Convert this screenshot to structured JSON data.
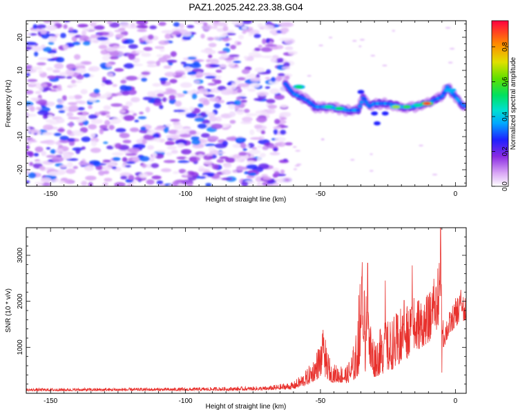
{
  "colors": {
    "snr_line": "#e8302c",
    "axis": "#000000"
  },
  "chart_data": [
    {
      "type": "heatmap",
      "title": "PAZ1.2025.242.23.38.G04",
      "xlabel": "Height of straight line (km)",
      "ylabel": "Frequency (Hz)",
      "xlim": [
        -159,
        4
      ],
      "ylim": [
        -25,
        25
      ],
      "xticks": [
        -150,
        -100,
        -50,
        0
      ],
      "yticks": [
        -20,
        -10,
        0,
        10,
        20
      ],
      "colorbar": {
        "label": "Normalized spectral amplitude",
        "range": [
          0,
          0.95
        ],
        "ticks": [
          0.0,
          0.2,
          0.4,
          0.6,
          0.8
        ],
        "tick_labels": [
          "0.0",
          "0.2",
          "0.4",
          "0.6",
          "0.8"
        ]
      },
      "noise_region": {
        "x_range": [
          -159,
          -61
        ],
        "amplitude_range": [
          0.02,
          0.35
        ]
      },
      "signal_ridge": [
        {
          "x": -63,
          "freq": 6
        },
        {
          "x": -60,
          "freq": 3
        },
        {
          "x": -55,
          "freq": 1
        },
        {
          "x": -52,
          "freq": -1
        },
        {
          "x": -48,
          "freq": -1
        },
        {
          "x": -44,
          "freq": -1.5
        },
        {
          "x": -40,
          "freq": -2
        },
        {
          "x": -36,
          "freq": -2
        },
        {
          "x": -34,
          "freq": 2
        },
        {
          "x": -32,
          "freq": -1
        },
        {
          "x": -30,
          "freq": 0
        },
        {
          "x": -25,
          "freq": 0
        },
        {
          "x": -20,
          "freq": -1
        },
        {
          "x": -15,
          "freq": -1
        },
        {
          "x": -12,
          "freq": 0
        },
        {
          "x": -10,
          "freq": 0
        },
        {
          "x": -8,
          "freq": 1
        },
        {
          "x": -5,
          "freq": 2
        },
        {
          "x": -3,
          "freq": 5
        },
        {
          "x": -1,
          "freq": 3
        },
        {
          "x": 2,
          "freq": 0
        },
        {
          "x": 4,
          "freq": -1
        }
      ],
      "signal_peaks": [
        {
          "x": -58,
          "freq": 5,
          "amp": 0.55
        },
        {
          "x": -47,
          "freq": -1,
          "amp": 0.5
        },
        {
          "x": -43,
          "freq": -1.5,
          "amp": 0.55
        },
        {
          "x": -22,
          "freq": -1,
          "amp": 0.7
        },
        {
          "x": -18,
          "freq": -1,
          "amp": 0.6
        },
        {
          "x": -14,
          "freq": -0.5,
          "amp": 0.5
        },
        {
          "x": -10.5,
          "freq": 0,
          "amp": 0.95
        },
        {
          "x": -2,
          "freq": 4,
          "amp": 0.4
        }
      ]
    },
    {
      "type": "line",
      "title": "",
      "xlabel": "Height of straight line (km)",
      "ylabel": "SNR (10 * v/v)",
      "xlim": [
        -159,
        4
      ],
      "ylim": [
        0,
        3600
      ],
      "xticks": [
        -150,
        -100,
        -50,
        0
      ],
      "yticks": [
        1000,
        2000,
        3000
      ],
      "envelope": [
        {
          "x": -159,
          "base": 50,
          "amp": 60
        },
        {
          "x": -100,
          "base": 55,
          "amp": 70
        },
        {
          "x": -70,
          "base": 65,
          "amp": 90
        },
        {
          "x": -60,
          "base": 90,
          "amp": 160
        },
        {
          "x": -55,
          "base": 180,
          "amp": 350
        },
        {
          "x": -52,
          "base": 280,
          "amp": 550
        },
        {
          "x": -49,
          "base": 380,
          "amp": 1000
        },
        {
          "x": -46,
          "base": 240,
          "amp": 400
        },
        {
          "x": -40,
          "base": 220,
          "amp": 400
        },
        {
          "x": -37,
          "base": 300,
          "amp": 900
        },
        {
          "x": -35,
          "base": 500,
          "amp": 2350
        },
        {
          "x": -33,
          "base": 450,
          "amp": 1700
        },
        {
          "x": -30,
          "base": 350,
          "amp": 900
        },
        {
          "x": -26,
          "base": 450,
          "amp": 1100
        },
        {
          "x": -22,
          "base": 550,
          "amp": 1200
        },
        {
          "x": -18,
          "base": 700,
          "amp": 1300
        },
        {
          "x": -15,
          "base": 900,
          "amp": 1250
        },
        {
          "x": -10,
          "base": 1100,
          "amp": 1050
        },
        {
          "x": -7,
          "base": 1300,
          "amp": 1200
        },
        {
          "x": -6,
          "base": 1400,
          "amp": 2300
        },
        {
          "x": -5,
          "base": 900,
          "amp": 700
        },
        {
          "x": -2,
          "base": 1300,
          "amp": 500
        },
        {
          "x": 1,
          "base": 1500,
          "amp": 700
        },
        {
          "x": 4,
          "base": 1600,
          "amp": 500
        }
      ],
      "spikes": [
        {
          "x": -49,
          "y": 1380
        },
        {
          "x": -34.5,
          "y": 2850
        },
        {
          "x": -32.5,
          "y": 2830
        },
        {
          "x": -26,
          "y": 2450
        },
        {
          "x": -19,
          "y": 2020
        },
        {
          "x": -16,
          "y": 2780
        },
        {
          "x": -8,
          "y": 2490
        },
        {
          "x": -5.5,
          "y": 3640
        },
        {
          "x": -5,
          "y": 450
        },
        {
          "x": 2,
          "y": 2250
        }
      ]
    }
  ]
}
